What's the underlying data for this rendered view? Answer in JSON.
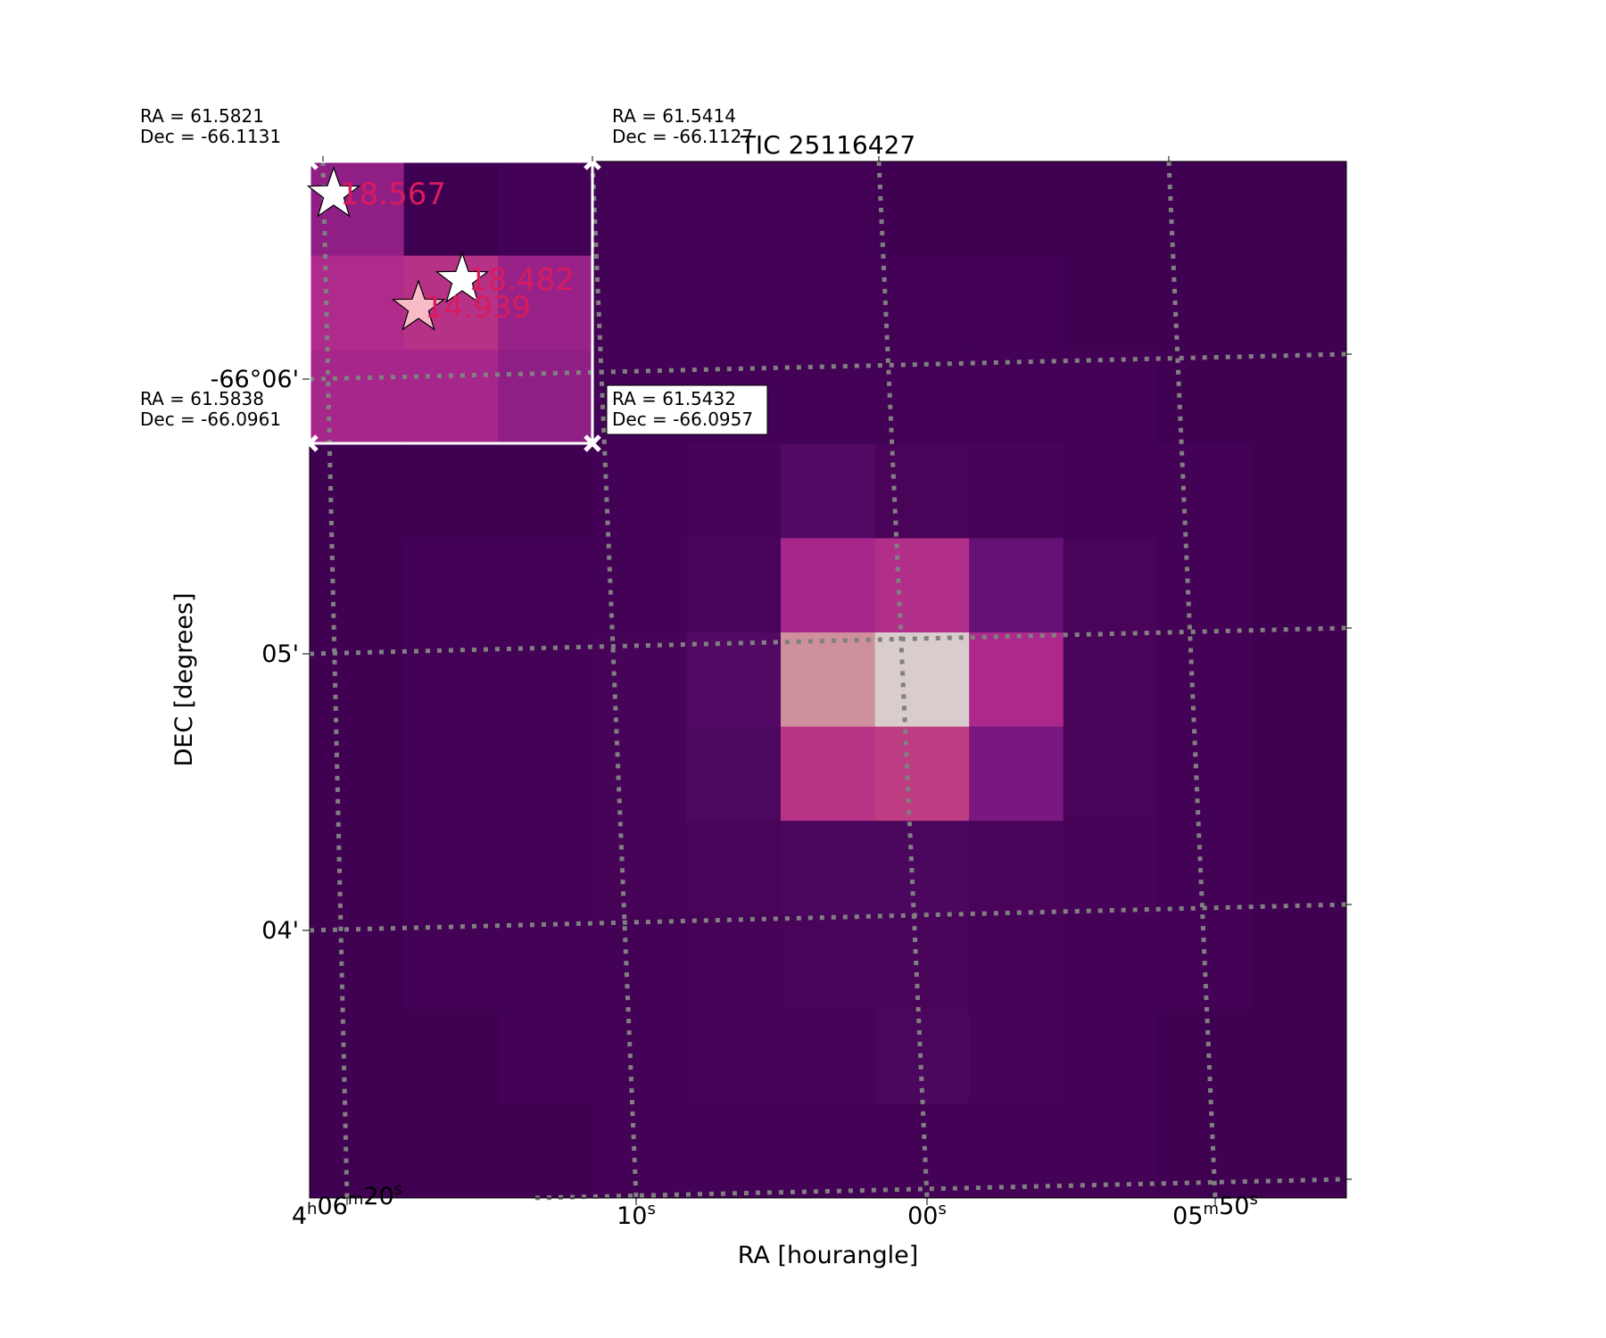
{
  "chart_data": {
    "type": "heatmap",
    "title": "TIC 25116427",
    "xlabel": "RA [hourangle]",
    "ylabel": "DEC [degrees]",
    "grid": true,
    "grid_style": "dotted",
    "grid_color": "#808080",
    "x_ticks": [
      {
        "pre": "4",
        "s1": "h",
        "mid": "06",
        "s2": "m",
        "num": "20",
        "s3": "s"
      },
      {
        "pre": "",
        "s1": "",
        "mid": "",
        "s2": "",
        "num": "10",
        "s3": "s"
      },
      {
        "pre": "",
        "s1": "",
        "mid": "",
        "s2": "",
        "num": "00",
        "s3": "s"
      },
      {
        "pre": "",
        "s1": "",
        "mid": "05",
        "s2": "m",
        "num": "50",
        "s3": "s"
      }
    ],
    "y_ticks": [
      "-66°06'",
      "05'",
      "04'"
    ],
    "colormap": "RdPu_r-like",
    "colors": {
      "low": "#3e0050",
      "high": "#d8cccc",
      "label": "#d81b60",
      "box": "#ffffff"
    },
    "pixels": [
      [
        0.3,
        0.0,
        0.02,
        0.02,
        0.02,
        0.02,
        0.01,
        0.01,
        0.01,
        0.01,
        0.01
      ],
      [
        0.42,
        0.5,
        0.33,
        0.02,
        0.02,
        0.02,
        0.02,
        0.02,
        0.01,
        0.01,
        0.01
      ],
      [
        0.38,
        0.38,
        0.3,
        0.02,
        0.02,
        0.02,
        0.02,
        0.02,
        0.02,
        0.01,
        0.01
      ],
      [
        0.01,
        0.01,
        0.01,
        0.02,
        0.03,
        0.08,
        0.04,
        0.03,
        0.02,
        0.02,
        0.01
      ],
      [
        0.01,
        0.02,
        0.02,
        0.02,
        0.04,
        0.38,
        0.46,
        0.15,
        0.04,
        0.02,
        0.01
      ],
      [
        0.01,
        0.02,
        0.02,
        0.03,
        0.08,
        0.86,
        1.0,
        0.4,
        0.04,
        0.02,
        0.01
      ],
      [
        0.01,
        0.02,
        0.02,
        0.03,
        0.06,
        0.52,
        0.6,
        0.22,
        0.04,
        0.02,
        0.01
      ],
      [
        0.01,
        0.02,
        0.02,
        0.03,
        0.04,
        0.05,
        0.05,
        0.04,
        0.03,
        0.02,
        0.01
      ],
      [
        0.01,
        0.02,
        0.02,
        0.02,
        0.03,
        0.04,
        0.04,
        0.03,
        0.02,
        0.02,
        0.01
      ],
      [
        0.01,
        0.01,
        0.02,
        0.02,
        0.03,
        0.03,
        0.05,
        0.03,
        0.02,
        0.01,
        0.01
      ],
      [
        0.01,
        0.01,
        0.01,
        0.02,
        0.02,
        0.02,
        0.02,
        0.02,
        0.02,
        0.01,
        0.01
      ]
    ],
    "aperture_corners": [
      {
        "ra_text": "RA = 61.5821",
        "dec_text": "Dec = -66.1131"
      },
      {
        "ra_text": "RA = 61.5414",
        "dec_text": "Dec = -66.1127"
      },
      {
        "ra_text": "RA = 61.5838",
        "dec_text": "Dec = -66.0961"
      },
      {
        "ra_text": "RA = 61.5432",
        "dec_text": "Dec = -66.0957"
      }
    ],
    "stars": [
      {
        "label": "18.567",
        "color": "#ffffff"
      },
      {
        "label": "18.482",
        "color": "#ffffff"
      },
      {
        "label": "14.939",
        "color": "#f8bcc8"
      }
    ]
  }
}
